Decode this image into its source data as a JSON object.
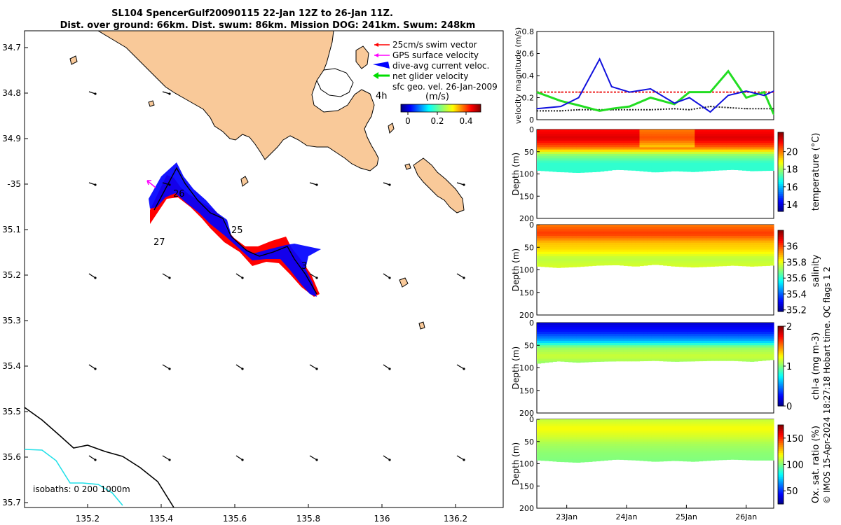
{
  "title": {
    "line1": "SL104 SpencerGulf20090115 22-Jan 12Z to 26-Jan 11Z.",
    "line2": "Dist. over ground: 66km. Dist. swum: 86km. Mission DOG: 241km. Swum: 248km"
  },
  "map": {
    "lon_ticks": [
      "135.2",
      "135.4",
      "135.6",
      "135.8",
      "136",
      "136.2"
    ],
    "lat_ticks": [
      "34.7",
      "34.8",
      "34.9",
      "-35",
      "35.1",
      "35.2",
      "35.3",
      "35.4",
      "35.5",
      "35.6",
      "35.7"
    ],
    "legend": [
      {
        "label": "25cm/s swim vector",
        "color": "#ff0000"
      },
      {
        "label": "GPS surface velocity",
        "color": "#ff00ff"
      },
      {
        "label": "dive-avg current veloc.",
        "color": "#0000ff"
      },
      {
        "label": "net glider velocity",
        "color": "#00dd00"
      },
      {
        "label": "sfc geo. vel. 26-Jan-2009",
        "color": "#000000"
      }
    ],
    "colorbar": {
      "title": "(m/s)",
      "ticks": [
        "0",
        "0.2",
        "0.4"
      ]
    },
    "day_labels": [
      "26",
      "25",
      "27",
      "3",
      "4h"
    ],
    "isobaths_label": "isobaths: 0   200  1000m",
    "colors": {
      "land": "#f9c999",
      "isobath200": "#000000",
      "isobath1000": "#22e0e8"
    }
  },
  "chart_data": [
    {
      "type": "line",
      "title": "",
      "xlabel": "",
      "ylabel": "velocity magnitude (m/s)",
      "ylim": [
        0,
        0.8
      ],
      "yticks": [
        "0",
        "0.2",
        "0.4",
        "0.6",
        "0.8"
      ],
      "xrange_days": [
        22.5,
        26.46
      ],
      "x": [
        22.5,
        22.9,
        23.2,
        23.55,
        23.75,
        24.05,
        24.4,
        24.8,
        25.05,
        25.4,
        25.7,
        26.0,
        26.3,
        26.46
      ],
      "series": [
        {
          "name": "dive-avg current",
          "color": "#1010dd",
          "values": [
            0.1,
            0.12,
            0.2,
            0.55,
            0.3,
            0.25,
            0.28,
            0.15,
            0.2,
            0.07,
            0.22,
            0.26,
            0.22,
            0.26
          ]
        },
        {
          "name": "net glider velocity",
          "color": "#22dd22",
          "values": [
            0.25,
            0.17,
            0.13,
            0.08,
            0.1,
            0.12,
            0.2,
            0.14,
            0.25,
            0.25,
            0.44,
            0.2,
            0.25,
            0.05
          ]
        },
        {
          "name": "swim speed",
          "color": "#ee2222",
          "values": [
            0.25,
            0.25,
            0.25,
            0.25,
            0.25,
            0.25,
            0.25,
            0.25,
            0.25,
            0.25,
            0.25,
            0.25,
            0.25,
            0.25
          ]
        },
        {
          "name": "sfc geo vel",
          "color": "#222222",
          "values": [
            0.08,
            0.08,
            0.09,
            0.09,
            0.09,
            0.09,
            0.09,
            0.1,
            0.09,
            0.12,
            0.11,
            0.1,
            0.1,
            0.1
          ]
        }
      ]
    },
    {
      "type": "heatmap",
      "ylabel": "Depth (m)",
      "colorbar_label": "temperature (°C)",
      "clim": [
        13.2,
        22.2
      ],
      "colorbar_ticks": [
        14,
        16,
        18,
        20
      ],
      "yticks": [
        "0",
        "50",
        "100",
        "150",
        "200"
      ],
      "ylim": [
        0,
        200
      ],
      "profile": [
        21,
        21.4,
        20.2,
        18,
        17,
        17
      ],
      "profile_depths": [
        0,
        20,
        40,
        55,
        75,
        95
      ],
      "bottom_depth": [
        92,
        95,
        97,
        95,
        90,
        92,
        96,
        93,
        95,
        92,
        90,
        93,
        92
      ]
    },
    {
      "type": "heatmap",
      "ylabel": "Depth (m)",
      "colorbar_label": "salinity",
      "clim": [
        35.18,
        36.2
      ],
      "colorbar_ticks": [
        35.2,
        35.4,
        35.6,
        35.8,
        36
      ],
      "yticks": [
        "0",
        "50",
        "100",
        "150",
        "200"
      ],
      "ylim": [
        0,
        200
      ],
      "profile": [
        35.95,
        36.02,
        35.88,
        35.85,
        35.75,
        35.78
      ],
      "profile_depths": [
        0,
        20,
        40,
        55,
        75,
        95
      ],
      "bottom_depth": [
        92,
        95,
        93,
        90,
        89,
        92,
        88,
        92,
        94,
        92,
        90,
        92,
        90
      ]
    },
    {
      "type": "heatmap",
      "ylabel": "Depth (m)",
      "colorbar_label": "chl-a (mg m-3)",
      "clim": [
        0,
        2
      ],
      "colorbar_ticks": [
        0,
        1,
        2
      ],
      "yticks": [
        "0",
        "50",
        "100",
        "150",
        "200"
      ],
      "ylim": [
        0,
        200
      ],
      "profile": [
        0.15,
        0.3,
        0.6,
        1.05,
        1.15,
        1.0
      ],
      "profile_depths": [
        0,
        20,
        40,
        55,
        75,
        95
      ],
      "bottom_depth": [
        90,
        85,
        88,
        86,
        85,
        85,
        84,
        86,
        85,
        84,
        84,
        86,
        82
      ]
    },
    {
      "type": "heatmap",
      "ylabel": "Depth (m)",
      "colorbar_label": "Ox. sat. ratio (%)",
      "clim": [
        25,
        175
      ],
      "colorbar_ticks": [
        50,
        100,
        150
      ],
      "yticks": [
        "0",
        "50",
        "100",
        "150",
        "200"
      ],
      "ylim": [
        0,
        200
      ],
      "profile": [
        110,
        118,
        112,
        106,
        102,
        100
      ],
      "profile_depths": [
        0,
        20,
        40,
        55,
        75,
        95
      ],
      "bottom_depth": [
        92,
        95,
        97,
        94,
        90,
        92,
        95,
        93,
        95,
        92,
        90,
        92,
        92
      ]
    }
  ],
  "time_axis": {
    "ticks": [
      "23Jan",
      "24Jan",
      "25Jan",
      "26Jan"
    ],
    "tick_days": [
      23,
      24,
      25,
      26
    ]
  },
  "footer": "© IMOS 15-Apr-2024 18:27:18 Hobart time. QC flags 1  2"
}
